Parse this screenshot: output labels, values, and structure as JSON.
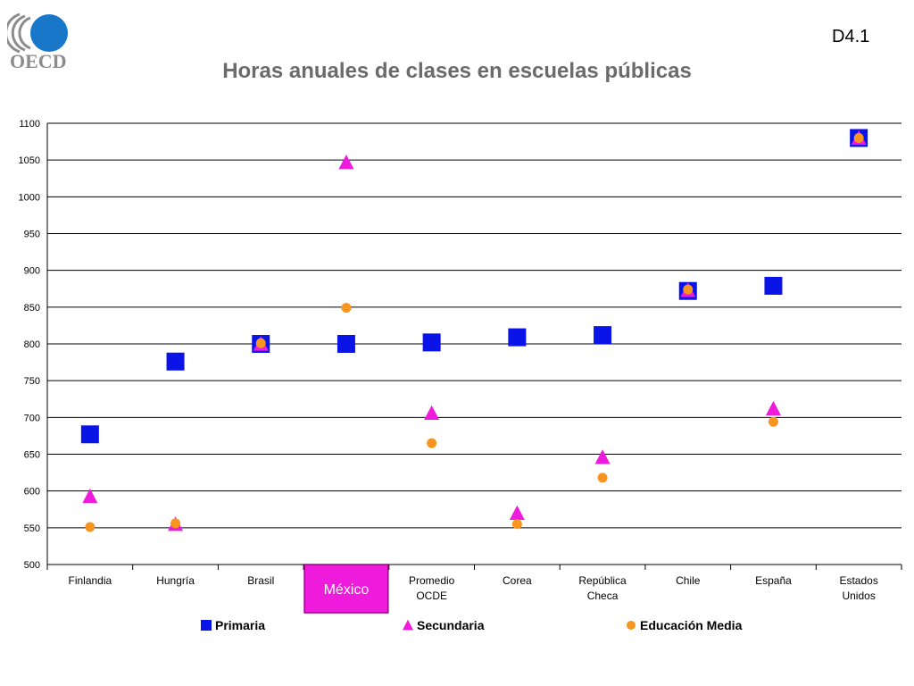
{
  "header": {
    "logo_text": "OECD",
    "slide_code": "D4.1"
  },
  "colors": {
    "primaria": "#0a14e6",
    "secundaria": "#ee1bdc",
    "media": "#f7951e",
    "highlight_fill": "#ee1bdc",
    "highlight_border": "#a0008c",
    "title": "#6b6b6b",
    "logo": "#1877c8",
    "logo_gray": "#8c8c8c"
  },
  "chart_data": {
    "type": "scatter",
    "title": "Horas anuales de clases en escuelas públicas",
    "xlabel": "",
    "ylabel": "",
    "ylim": [
      500,
      1100
    ],
    "yticks": [
      500,
      550,
      600,
      650,
      700,
      750,
      800,
      850,
      900,
      950,
      1000,
      1050,
      1100
    ],
    "grid": true,
    "legend_position": "bottom",
    "categories": [
      "Finlandia",
      "Hungría",
      "Brasil",
      "México",
      "Promedio OCDE",
      "Corea",
      "República Checa",
      "Chile",
      "España",
      "Estados Unidos"
    ],
    "highlight_category": "México",
    "series": [
      {
        "name": "Primaria",
        "marker": "square",
        "values": [
          677,
          776,
          800,
          800,
          802,
          809,
          812,
          872,
          879,
          1080
        ]
      },
      {
        "name": "Secundaria",
        "marker": "triangle",
        "values": [
          593,
          555,
          800,
          1047,
          706,
          570,
          646,
          873,
          712,
          1080
        ]
      },
      {
        "name": "Educación Media",
        "marker": "circle",
        "values": [
          551,
          556,
          801,
          849,
          665,
          555,
          618,
          874,
          694,
          1080
        ]
      }
    ]
  }
}
